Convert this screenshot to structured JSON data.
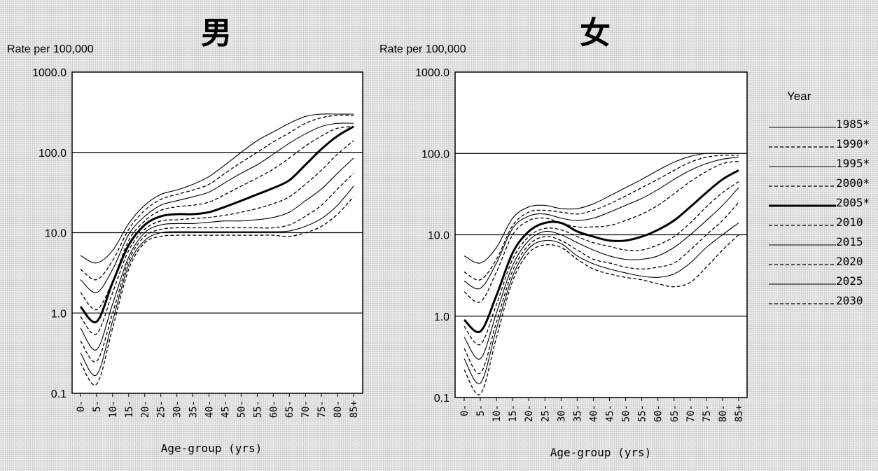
{
  "chart_data": [
    {
      "type": "line",
      "title": "男",
      "ylabel": "Rate per 100,000",
      "xlabel": "Age-group (yrs)",
      "yscale": "log",
      "ylim": [
        0.1,
        1000
      ],
      "yticks": [
        "1000.0",
        "100.0",
        "10.0",
        "1.0",
        "0.1"
      ],
      "grid": "horizontal at 1, 10, 100",
      "categories": [
        "0-",
        "5-",
        "10-",
        "15-",
        "20-",
        "25-",
        "30-",
        "35-",
        "40-",
        "45-",
        "50-",
        "55-",
        "60-",
        "65-",
        "70-",
        "75-",
        "80-",
        "85+"
      ],
      "series": [
        {
          "name": "1985*",
          "style": "thin-solid",
          "values": [
            5.2,
            4.2,
            6,
            13,
            22,
            30,
            34,
            40,
            50,
            70,
            100,
            140,
            180,
            230,
            280,
            300,
            300,
            300
          ]
        },
        {
          "name": "1990*",
          "style": "dashed",
          "values": [
            3.5,
            2.6,
            4.5,
            11,
            19,
            26,
            30,
            34,
            40,
            55,
            75,
            100,
            135,
            175,
            230,
            270,
            290,
            290
          ]
        },
        {
          "name": "1995*",
          "style": "thin-solid",
          "values": [
            2.6,
            1.8,
            3.5,
            9.5,
            16,
            22,
            25,
            28,
            32,
            42,
            55,
            70,
            95,
            130,
            170,
            210,
            230,
            230
          ]
        },
        {
          "name": "2000*",
          "style": "dashed",
          "values": [
            1.8,
            1.1,
            2.5,
            8,
            14,
            19,
            21,
            22,
            24,
            30,
            38,
            48,
            62,
            85,
            120,
            160,
            200,
            210
          ]
        },
        {
          "name": "2005*",
          "style": "thick-solid",
          "values": [
            1.2,
            0.78,
            2.4,
            7,
            12.5,
            16,
            17,
            17,
            18,
            21,
            25,
            30,
            36,
            45,
            70,
            110,
            160,
            210
          ]
        },
        {
          "name": "2010",
          "style": "dashed",
          "values": [
            0.9,
            0.55,
            1.8,
            6,
            11,
            14,
            14.5,
            15,
            15.5,
            16.5,
            18,
            20,
            23,
            28,
            40,
            60,
            95,
            140
          ]
        },
        {
          "name": "2015",
          "style": "thin-solid",
          "values": [
            0.65,
            0.35,
            1.3,
            5,
            10,
            12.5,
            13,
            13,
            13.5,
            14,
            14,
            14.5,
            15.5,
            18,
            25,
            35,
            55,
            85
          ]
        },
        {
          "name": "2020",
          "style": "dashed",
          "values": [
            0.45,
            0.25,
            1,
            4.5,
            9,
            11,
            11.5,
            11.5,
            11.5,
            11.5,
            11.5,
            11.5,
            11.5,
            12.5,
            16,
            22,
            35,
            55
          ]
        },
        {
          "name": "2025",
          "style": "thin-solid",
          "values": [
            0.32,
            0.17,
            0.8,
            4,
            8,
            10,
            10.3,
            10.3,
            10.3,
            10.3,
            10.3,
            10.3,
            10.3,
            10.5,
            12,
            15,
            22,
            38
          ]
        },
        {
          "name": "2030",
          "style": "dashed",
          "values": [
            0.24,
            0.13,
            0.65,
            3.5,
            7.5,
            9,
            9.3,
            9.3,
            9.3,
            9.3,
            9.3,
            9.3,
            9.3,
            9,
            10,
            12,
            17,
            28
          ]
        }
      ]
    },
    {
      "type": "line",
      "title": "女",
      "ylabel": "Rate per 100,000",
      "xlabel": "Age-group (yrs)",
      "yscale": "log",
      "ylim": [
        0.1,
        1000
      ],
      "yticks": [
        "1000.0",
        "100.0",
        "10.0",
        "1.0",
        "0.1"
      ],
      "grid": "horizontal at 1, 10, 100",
      "categories": [
        "0-",
        "5-",
        "10-",
        "15-",
        "20-",
        "25-",
        "30-",
        "35-",
        "40-",
        "45-",
        "50-",
        "55-",
        "60-",
        "65-",
        "70-",
        "75-",
        "80-",
        "85+"
      ],
      "series": [
        {
          "name": "1985*",
          "style": "thin-solid",
          "values": [
            5.5,
            4.5,
            7,
            16,
            22,
            23,
            21,
            21,
            24,
            30,
            38,
            48,
            62,
            78,
            92,
            100,
            100,
            100
          ]
        },
        {
          "name": "1990*",
          "style": "dashed",
          "values": [
            3.5,
            2.8,
            5,
            13,
            19,
            20,
            19,
            18,
            20,
            24,
            30,
            38,
            48,
            62,
            78,
            90,
            95,
            95
          ]
        },
        {
          "name": "1995*",
          "style": "thin-solid",
          "values": [
            2.7,
            2.2,
            4.5,
            12,
            17,
            18,
            16,
            15,
            16,
            19,
            23,
            28,
            36,
            48,
            62,
            75,
            85,
            90
          ]
        },
        {
          "name": "2000*",
          "style": "dashed",
          "values": [
            2,
            1.5,
            3.5,
            10,
            15,
            16,
            14,
            12.5,
            12.5,
            13,
            15,
            18,
            23,
            32,
            45,
            60,
            75,
            80
          ]
        },
        {
          "name": "2005*",
          "style": "thick-solid",
          "values": [
            0.9,
            0.65,
            1.8,
            6,
            11,
            14,
            14,
            11,
            9.5,
            8.5,
            8.5,
            9.5,
            11.5,
            15,
            22,
            33,
            48,
            62
          ]
        },
        {
          "name": "2010",
          "style": "dashed",
          "values": [
            0.75,
            0.45,
            1.4,
            5,
            9.5,
            12,
            11.5,
            9.5,
            8,
            7.2,
            6.5,
            6.5,
            7.5,
            9.5,
            14,
            22,
            33,
            45
          ]
        },
        {
          "name": "2015",
          "style": "thin-solid",
          "values": [
            0.55,
            0.3,
            1.1,
            4.2,
            8.5,
            11,
            10,
            8,
            6.5,
            5.5,
            5,
            5,
            5.5,
            7,
            10,
            15,
            23,
            38
          ]
        },
        {
          "name": "2020",
          "style": "dashed",
          "values": [
            0.4,
            0.2,
            0.85,
            3.6,
            7.5,
            9.5,
            8.5,
            6.5,
            5,
            4.5,
            4,
            3.8,
            4,
            4.5,
            6.5,
            10,
            15,
            25
          ]
        },
        {
          "name": "2025",
          "style": "thin-solid",
          "values": [
            0.3,
            0.15,
            0.7,
            3.1,
            6.8,
            8.5,
            7.8,
            5.5,
            4.4,
            3.8,
            3.4,
            3.1,
            3,
            3.3,
            4.5,
            7,
            10,
            14
          ]
        },
        {
          "name": "2030",
          "style": "dashed",
          "values": [
            0.22,
            0.11,
            0.55,
            2.7,
            6,
            7.5,
            7,
            5,
            3.8,
            3.3,
            3,
            2.8,
            2.5,
            2.3,
            2.6,
            4,
            6.5,
            10
          ]
        }
      ]
    }
  ],
  "legend": {
    "title": "Year",
    "placement": "right",
    "items": [
      {
        "label": "1985*",
        "style": "thin-solid"
      },
      {
        "label": "1990*",
        "style": "dashed"
      },
      {
        "label": "1995*",
        "style": "thin-solid"
      },
      {
        "label": "2000*",
        "style": "dashed"
      },
      {
        "label": "2005*",
        "style": "thick-solid"
      },
      {
        "label": "2010",
        "style": "dashed"
      },
      {
        "label": "2015",
        "style": "thin-solid"
      },
      {
        "label": "2020",
        "style": "dashed"
      },
      {
        "label": "2025",
        "style": "thin-solid"
      },
      {
        "label": "2030",
        "style": "dashed"
      }
    ]
  }
}
